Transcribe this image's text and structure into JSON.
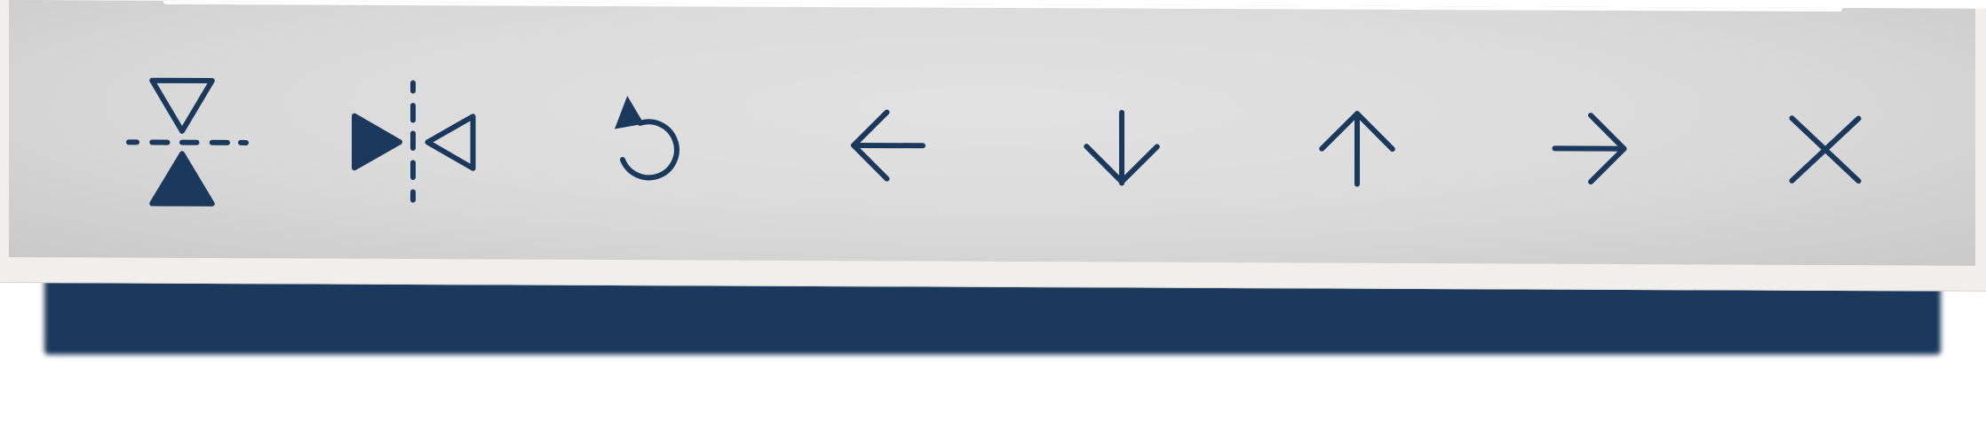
{
  "toolbar": {
    "icon_color": "#1b385d",
    "panel_color": "#dcdcdc",
    "tools": [
      {
        "name": "flip-vertical",
        "icon": "flip-vertical-icon"
      },
      {
        "name": "flip-horizontal",
        "icon": "flip-horizontal-icon"
      },
      {
        "name": "rotate",
        "icon": "rotate-icon"
      },
      {
        "name": "move-left",
        "icon": "arrow-left-icon"
      },
      {
        "name": "move-down",
        "icon": "arrow-down-icon"
      },
      {
        "name": "move-up",
        "icon": "arrow-up-icon"
      },
      {
        "name": "move-right",
        "icon": "arrow-right-icon"
      },
      {
        "name": "close",
        "icon": "close-icon"
      }
    ]
  }
}
